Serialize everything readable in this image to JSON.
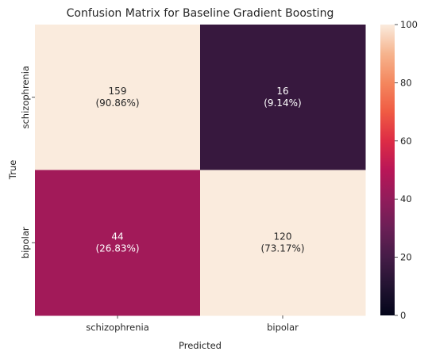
{
  "chart_data": {
    "type": "heatmap",
    "title": "Confusion Matrix for Baseline Gradient Boosting",
    "xlabel": "Predicted",
    "ylabel": "True",
    "x_categories": [
      "schizophrenia",
      "bipolar"
    ],
    "y_categories": [
      "schizophrenia",
      "bipolar"
    ],
    "values": [
      [
        159,
        16
      ],
      [
        44,
        120
      ]
    ],
    "annotations": [
      [
        "159\n(90.86%)",
        "16\n(9.14%)"
      ],
      [
        "44\n(26.83%)",
        "120\n(73.17%)"
      ]
    ],
    "colorbar": {
      "range": [
        0,
        100
      ],
      "ticks": [
        0,
        20,
        40,
        60,
        80,
        100
      ],
      "colormap": "rocket",
      "low_color": "#03051a",
      "high_color": "#faebdd"
    }
  }
}
